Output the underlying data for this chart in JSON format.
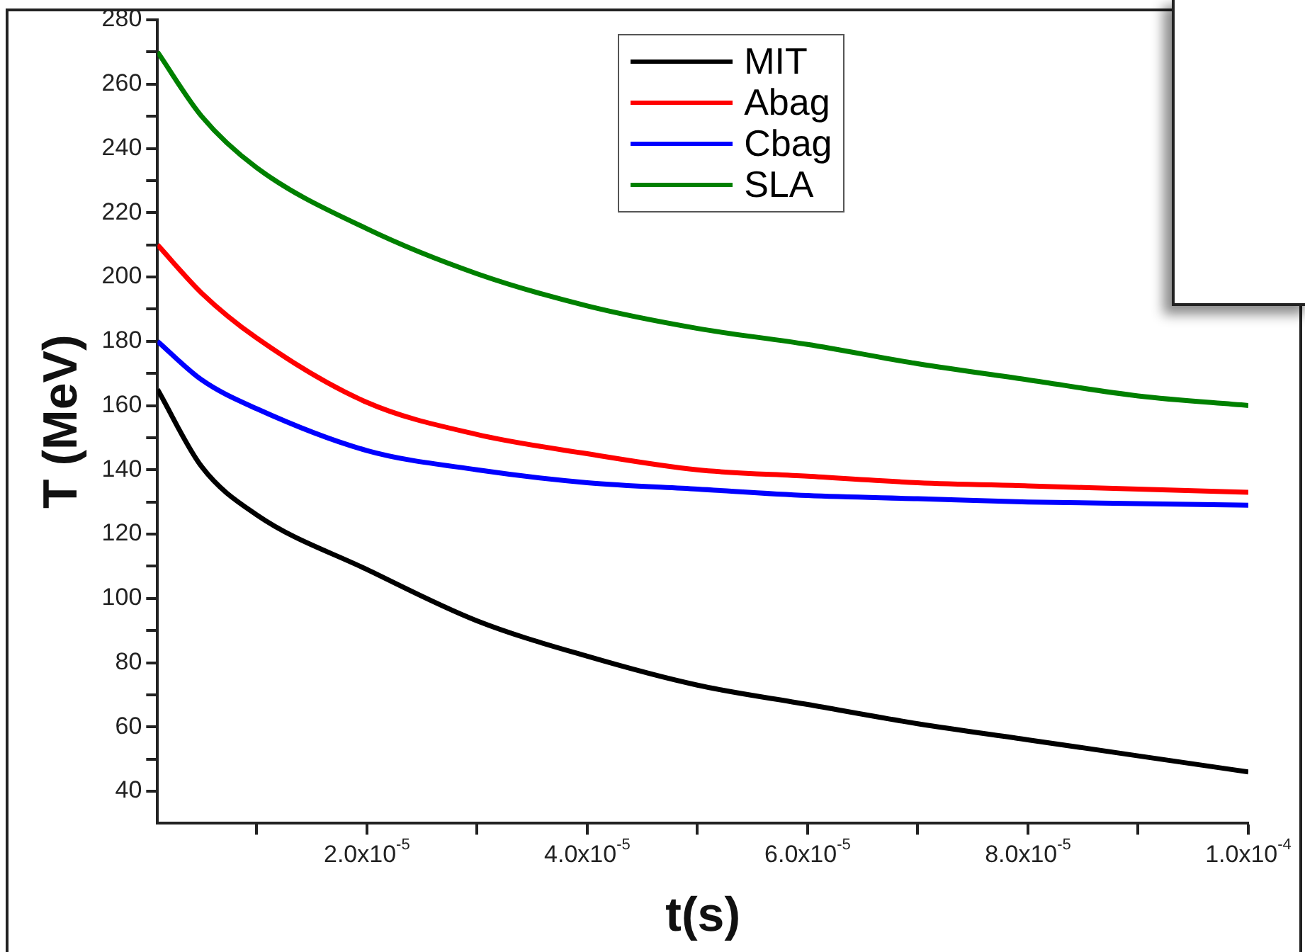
{
  "chart_data": {
    "type": "line",
    "xlabel": "t(s)",
    "ylabel": "T (MeV)",
    "x": [
      1e-06,
      5e-06,
      1e-05,
      2e-05,
      3e-05,
      4e-05,
      5e-05,
      6e-05,
      7e-05,
      8e-05,
      9e-05,
      0.0001
    ],
    "series": [
      {
        "name": "MIT",
        "color": "#000000",
        "values": [
          165,
          141,
          126,
          109,
          93,
          82,
          73,
          67,
          61,
          56,
          51,
          46
        ]
      },
      {
        "name": "Abag",
        "color": "#ff0000",
        "values": [
          210,
          195,
          181,
          161,
          151,
          145,
          140,
          138,
          136,
          135,
          134,
          133
        ]
      },
      {
        "name": "Cbag",
        "color": "#0000ff",
        "values": [
          180,
          168,
          159,
          146,
          140,
          136,
          134,
          132,
          131,
          130,
          129.5,
          129
        ]
      },
      {
        "name": "SLA",
        "color": "#008000",
        "values": [
          270,
          250,
          234,
          215,
          201,
          191,
          184,
          179,
          173,
          168,
          163,
          160
        ]
      }
    ],
    "xlim": [
      1e-06,
      0.0001
    ],
    "xticks": [
      {
        "value": 1e-05,
        "label": null
      },
      {
        "value": 2e-05,
        "label": "2.0x10$^{-5}$"
      },
      {
        "value": 3e-05,
        "label": null
      },
      {
        "value": 4e-05,
        "label": "4.0x10$^{-5}$"
      },
      {
        "value": 5e-05,
        "label": null
      },
      {
        "value": 6e-05,
        "label": "6.0x10$^{-5}$"
      },
      {
        "value": 7e-05,
        "label": null
      },
      {
        "value": 8e-05,
        "label": "8.0x10$^{-5}$"
      },
      {
        "value": 9e-05,
        "label": null
      },
      {
        "value": 0.0001,
        "label": "1.0x10$^{-4}$"
      }
    ],
    "ylim": [
      30,
      280
    ],
    "yticks": [
      {
        "value": 40,
        "label": "40"
      },
      {
        "value": 50,
        "label": null
      },
      {
        "value": 60,
        "label": "60"
      },
      {
        "value": 70,
        "label": null
      },
      {
        "value": 80,
        "label": "80"
      },
      {
        "value": 90,
        "label": null
      },
      {
        "value": 100,
        "label": "100"
      },
      {
        "value": 110,
        "label": null
      },
      {
        "value": 120,
        "label": "120"
      },
      {
        "value": 130,
        "label": null
      },
      {
        "value": 140,
        "label": "140"
      },
      {
        "value": 150,
        "label": null
      },
      {
        "value": 160,
        "label": "160"
      },
      {
        "value": 170,
        "label": null
      },
      {
        "value": 180,
        "label": "180"
      },
      {
        "value": 190,
        "label": null
      },
      {
        "value": 200,
        "label": "200"
      },
      {
        "value": 210,
        "label": null
      },
      {
        "value": 220,
        "label": "220"
      },
      {
        "value": 230,
        "label": null
      },
      {
        "value": 240,
        "label": "240"
      },
      {
        "value": 250,
        "label": null
      },
      {
        "value": 260,
        "label": "260"
      },
      {
        "value": 270,
        "label": null
      },
      {
        "value": 280,
        "label": "280"
      }
    ],
    "grid": false,
    "legend": "top",
    "marker": "none",
    "line_style": "solid"
  }
}
